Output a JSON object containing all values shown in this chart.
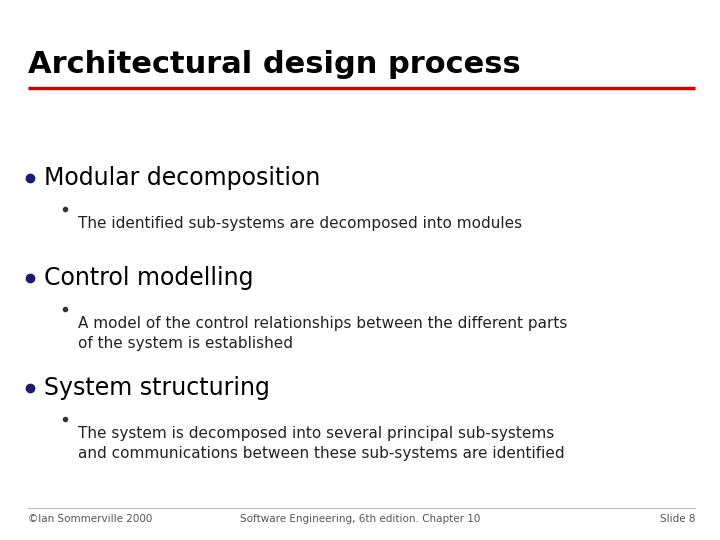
{
  "title": "Architectural design process",
  "title_fontsize": 22,
  "title_color": "#000000",
  "line_color": "#cc0000",
  "bg_color": "#ffffff",
  "bullet_color": "#1a1a6e",
  "sub_bullet_color": "#333333",
  "items": [
    {
      "bullet": "System structuring",
      "sub_items": [
        "The system is decomposed into several principal sub-systems\nand communications between these sub-systems are identified"
      ]
    },
    {
      "bullet": "Control modelling",
      "sub_items": [
        "A model of the control relationships between the different parts\nof the system is established"
      ]
    },
    {
      "bullet": "Modular decomposition",
      "sub_items": [
        "The identified sub-systems are decomposed into modules"
      ]
    }
  ],
  "footer_left": "©Ian Sommerville 2000",
  "footer_center": "Software Engineering, 6th edition. Chapter 10",
  "footer_right": "Slide 8",
  "footer_fontsize": 7.5,
  "bullet_fontsize": 17,
  "sub_item_fontsize": 11
}
